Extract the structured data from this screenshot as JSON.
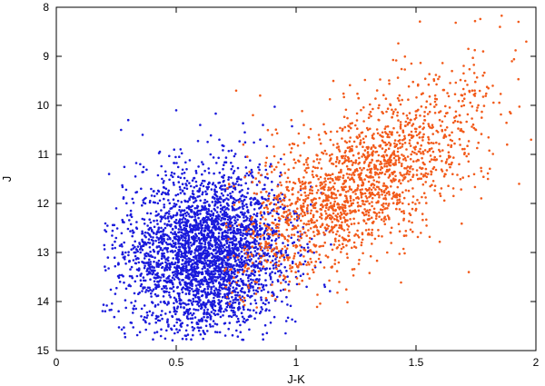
{
  "chart_data": {
    "type": "scatter",
    "title": "",
    "xlabel": "J-K",
    "ylabel": "J",
    "xlim": [
      0,
      2
    ],
    "ylim": [
      15,
      8
    ],
    "y_inverted": true,
    "x_ticks": [
      0,
      0.5,
      1,
      1.5,
      2
    ],
    "x_tick_labels": [
      "0",
      "0.5",
      "1",
      "1.5",
      "2"
    ],
    "y_ticks": [
      8,
      9,
      10,
      11,
      12,
      13,
      14,
      15
    ],
    "y_tick_labels": [
      "8",
      "9",
      "10",
      "11",
      "12",
      "13",
      "14",
      "15"
    ],
    "grid": false,
    "legend": "none",
    "series": [
      {
        "color": "#1a1adb",
        "count_approx": 3200,
        "points": [
          [
            0.2,
            12.85
          ],
          [
            0.22,
            11.4
          ],
          [
            0.25,
            12.1
          ],
          [
            0.27,
            10.5
          ],
          [
            0.28,
            11.9
          ],
          [
            0.3,
            10.3
          ],
          [
            0.32,
            12.6
          ],
          [
            0.33,
            13.0
          ],
          [
            0.35,
            11.2
          ],
          [
            0.36,
            10.6
          ],
          [
            0.38,
            12.2
          ],
          [
            0.4,
            13.3
          ],
          [
            0.42,
            11.8
          ],
          [
            0.44,
            12.7
          ],
          [
            0.45,
            14.0
          ],
          [
            0.46,
            13.6
          ],
          [
            0.48,
            12.3
          ],
          [
            0.5,
            10.1
          ],
          [
            0.5,
            12.9
          ],
          [
            0.52,
            13.4
          ],
          [
            0.54,
            11.6
          ],
          [
            0.55,
            14.2
          ],
          [
            0.56,
            12.8
          ],
          [
            0.58,
            13.1
          ],
          [
            0.6,
            10.4
          ],
          [
            0.6,
            13.7
          ],
          [
            0.62,
            12.5
          ],
          [
            0.63,
            14.6
          ],
          [
            0.65,
            13.2
          ],
          [
            0.66,
            11.9
          ],
          [
            0.68,
            10.7
          ],
          [
            0.68,
            13.9
          ],
          [
            0.7,
            12.4
          ],
          [
            0.72,
            14.3
          ],
          [
            0.73,
            11.3
          ],
          [
            0.75,
            13.5
          ],
          [
            0.76,
            12.1
          ],
          [
            0.78,
            14.1
          ],
          [
            0.8,
            11.7
          ],
          [
            0.8,
            13.0
          ],
          [
            0.82,
            12.6
          ],
          [
            0.84,
            13.8
          ],
          [
            0.86,
            11.9
          ],
          [
            0.88,
            12.9
          ],
          [
            0.9,
            13.4
          ],
          [
            0.92,
            12.2
          ],
          [
            0.95,
            13.1
          ],
          [
            0.98,
            12.7
          ],
          [
            1.0,
            13.5
          ],
          [
            1.05,
            12.9
          ],
          [
            1.08,
            13.3
          ],
          [
            1.12,
            13.7
          ]
        ]
      },
      {
        "color": "#f25a1a",
        "count_approx": 1900,
        "points": [
          [
            0.72,
            11.6
          ],
          [
            0.75,
            9.7
          ],
          [
            0.78,
            10.8
          ],
          [
            0.82,
            10.2
          ],
          [
            0.85,
            9.8
          ],
          [
            0.88,
            11.4
          ],
          [
            0.9,
            10.6
          ],
          [
            0.92,
            12.1
          ],
          [
            0.95,
            11.0
          ],
          [
            0.98,
            10.3
          ],
          [
            1.0,
            12.5
          ],
          [
            1.02,
            11.7
          ],
          [
            1.05,
            13.2
          ],
          [
            1.08,
            12.0
          ],
          [
            1.1,
            11.1
          ],
          [
            1.12,
            12.8
          ],
          [
            1.15,
            11.8
          ],
          [
            1.18,
            13.6
          ],
          [
            1.2,
            12.2
          ],
          [
            1.22,
            11.3
          ],
          [
            1.25,
            12.9
          ],
          [
            1.28,
            11.6
          ],
          [
            1.3,
            10.5
          ],
          [
            1.32,
            12.4
          ],
          [
            1.35,
            11.2
          ],
          [
            1.38,
            13.0
          ],
          [
            1.4,
            11.9
          ],
          [
            1.42,
            10.8
          ],
          [
            1.45,
            12.2
          ],
          [
            1.48,
            11.0
          ],
          [
            1.5,
            10.2
          ],
          [
            1.52,
            12.6
          ],
          [
            1.55,
            11.4
          ],
          [
            1.58,
            9.8
          ],
          [
            1.6,
            11.8
          ],
          [
            1.62,
            10.6
          ],
          [
            1.65,
            9.3
          ],
          [
            1.68,
            11.2
          ],
          [
            1.7,
            10.0
          ],
          [
            1.72,
            13.4
          ],
          [
            1.75,
            10.5
          ],
          [
            1.78,
            8.9
          ],
          [
            1.8,
            11.5
          ],
          [
            1.82,
            9.6
          ],
          [
            1.85,
            8.4
          ],
          [
            1.88,
            10.8
          ],
          [
            1.9,
            9.1
          ],
          [
            1.93,
            11.6
          ],
          [
            1.96,
            8.7
          ],
          [
            1.98,
            10.7
          ]
        ]
      }
    ]
  }
}
